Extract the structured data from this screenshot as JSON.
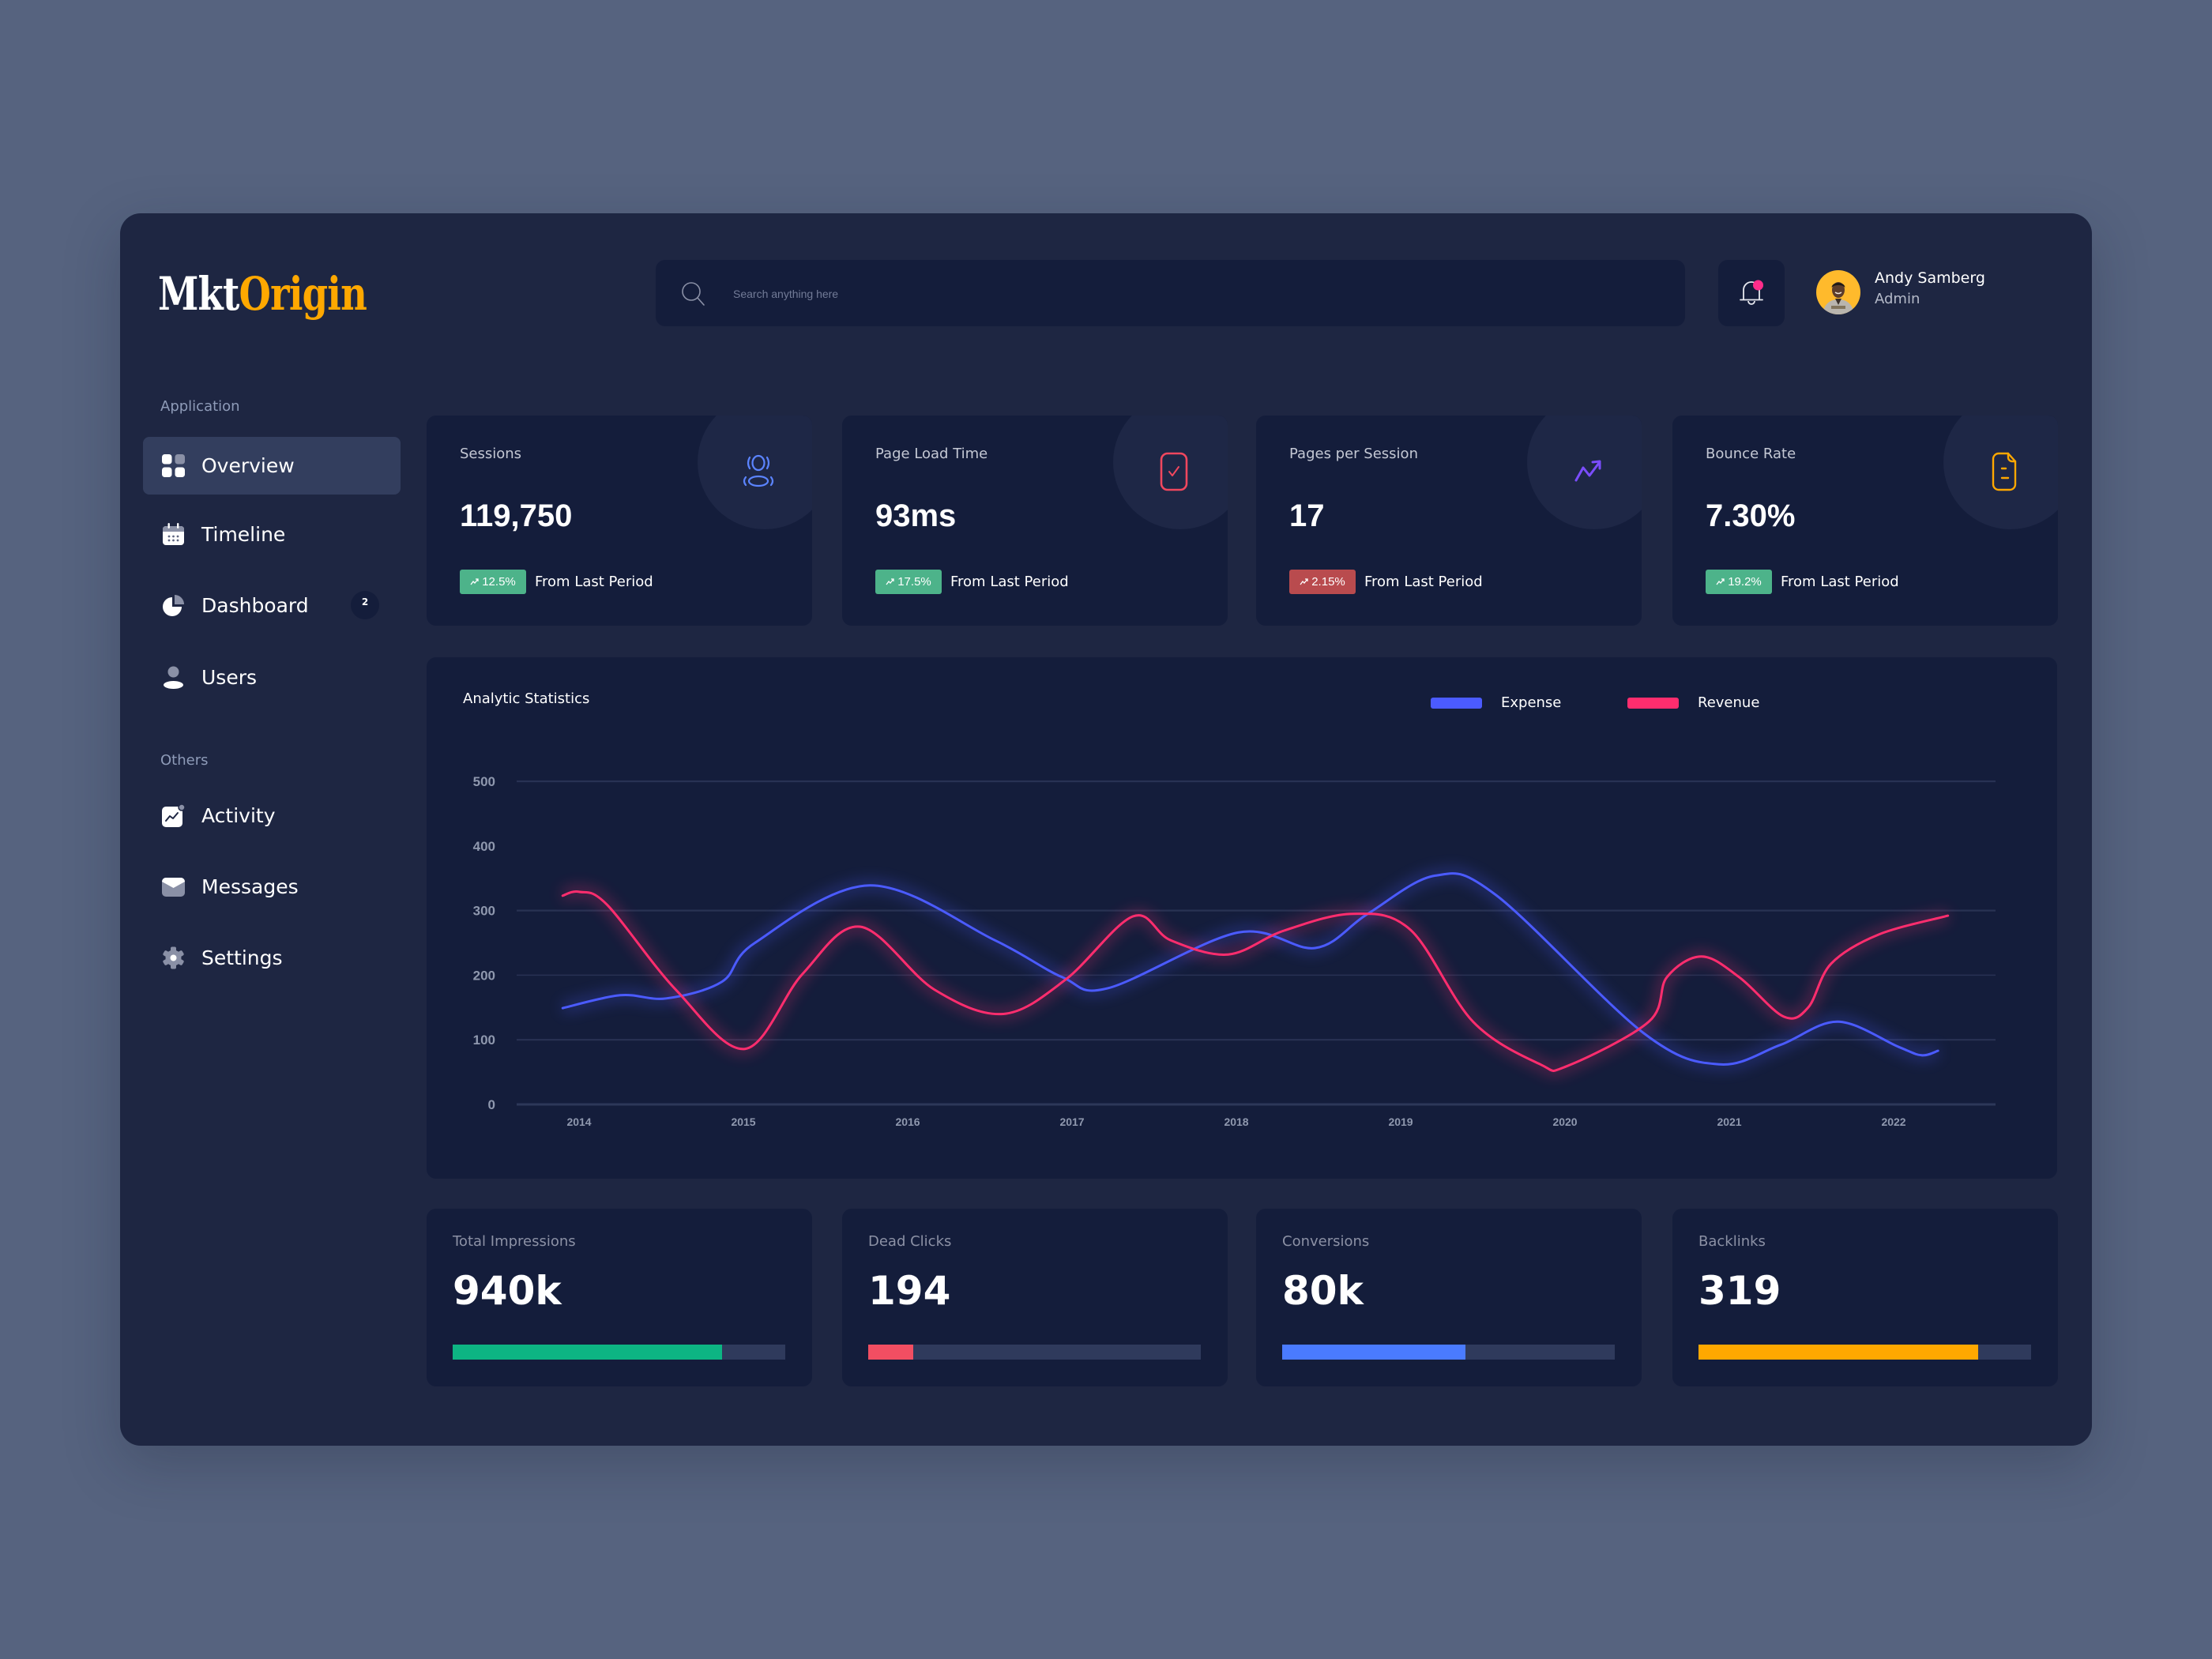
{
  "app": {
    "logo_part1": "Mkt",
    "logo_part2": "Origin"
  },
  "search": {
    "placeholder": "Search anything here",
    "icon": "search-icon"
  },
  "header": {
    "bell_icon": "bell-icon",
    "notification_dot_color": "#FF2D8A"
  },
  "user": {
    "name": "Andy Samberg",
    "role": "Admin"
  },
  "sidebar": {
    "sections": [
      {
        "title": "Application",
        "items": [
          {
            "label": "Overview",
            "icon": "grid-icon",
            "active": true
          },
          {
            "label": "Timeline",
            "icon": "calendar-icon"
          },
          {
            "label": "Dashboard",
            "icon": "pie-chart-icon",
            "badge": "2"
          },
          {
            "label": "Users",
            "icon": "user-icon"
          }
        ]
      },
      {
        "title": "Others",
        "items": [
          {
            "label": "Activity",
            "icon": "activity-icon"
          },
          {
            "label": "Messages",
            "icon": "mail-icon"
          },
          {
            "label": "Settings",
            "icon": "gear-icon"
          }
        ]
      }
    ]
  },
  "stats": [
    {
      "label": "Sessions",
      "value": "119,750",
      "change": "12.5%",
      "trend": "up",
      "change_color": "#4DB38A",
      "caption": "From Last Period",
      "icon": "users-icon",
      "icon_color": "#5B84FF"
    },
    {
      "label": "Page Load Time",
      "value": "93ms",
      "change": "17.5%",
      "trend": "up",
      "change_color": "#4DB38A",
      "caption": "From Last Period",
      "icon": "check-square-icon",
      "icon_color": "#F0475E"
    },
    {
      "label": "Pages per Session",
      "value": "17",
      "change": "2.15%",
      "trend": "down",
      "change_color": "#B94B4E",
      "caption": "From Last Period",
      "icon": "trending-up-icon",
      "icon_color": "#7B4DFF"
    },
    {
      "label": "Bounce Rate",
      "value": "7.30%",
      "change": "19.2%",
      "trend": "up",
      "change_color": "#4DB38A",
      "caption": "From Last Period",
      "icon": "document-icon",
      "icon_color": "#FFA800"
    }
  ],
  "chart_data": {
    "type": "line",
    "title": "Analytic Statistics",
    "xlabel": "",
    "ylabel": "",
    "x_tick_labels": [
      "2014",
      "2015",
      "2016",
      "2017",
      "2018",
      "2019",
      "2020",
      "2021",
      "2022"
    ],
    "y_ticks": [
      0,
      100,
      200,
      300,
      400,
      500
    ],
    "y_tick_labels": [
      "0",
      "100",
      "200",
      "300",
      "400",
      "500"
    ],
    "gridlines": [
      0,
      100,
      200,
      300,
      500
    ],
    "xlim": [
      2013.62,
      2022.62
    ],
    "ylim": [
      0,
      500
    ],
    "grid": true,
    "legend": "top-right",
    "series": [
      {
        "name": "Expense",
        "color": "#4B5BFF",
        "points": [
          [
            2013.9,
            149
          ],
          [
            2014.25,
            169
          ],
          [
            2014.53,
            164
          ],
          [
            2014.87,
            190
          ],
          [
            2015.07,
            250
          ],
          [
            2015.77,
            339
          ],
          [
            2016.53,
            254
          ],
          [
            2016.94,
            197
          ],
          [
            2017.22,
            180
          ],
          [
            2018.01,
            266
          ],
          [
            2018.48,
            242
          ],
          [
            2018.8,
            295
          ],
          [
            2019.21,
            354
          ],
          [
            2019.58,
            324
          ],
          [
            2020.48,
            110
          ],
          [
            2020.94,
            62
          ],
          [
            2021.31,
            92
          ],
          [
            2021.66,
            128
          ],
          [
            2022.03,
            89
          ],
          [
            2022.17,
            76
          ],
          [
            2022.27,
            83
          ]
        ]
      },
      {
        "name": "Revenue",
        "color": "#FF2D6E",
        "points": [
          [
            2013.9,
            323
          ],
          [
            2014.0,
            329
          ],
          [
            2014.17,
            309
          ],
          [
            2014.59,
            177
          ],
          [
            2015.01,
            86
          ],
          [
            2015.36,
            202
          ],
          [
            2015.71,
            275
          ],
          [
            2016.16,
            178
          ],
          [
            2016.58,
            140
          ],
          [
            2016.96,
            193
          ],
          [
            2017.37,
            291
          ],
          [
            2017.6,
            254
          ],
          [
            2017.95,
            232
          ],
          [
            2018.29,
            269
          ],
          [
            2018.71,
            295
          ],
          [
            2019.06,
            270
          ],
          [
            2019.44,
            128
          ],
          [
            2019.85,
            62
          ],
          [
            2020.01,
            59
          ],
          [
            2020.51,
            128
          ],
          [
            2020.62,
            197
          ],
          [
            2020.83,
            229
          ],
          [
            2021.06,
            197
          ],
          [
            2021.33,
            136
          ],
          [
            2021.48,
            150
          ],
          [
            2021.62,
            218
          ],
          [
            2021.91,
            263
          ],
          [
            2022.33,
            292
          ]
        ]
      }
    ]
  },
  "metrics": [
    {
      "label": "Total Impressions",
      "value": "940k",
      "progress": 0.81,
      "color": "#0DB583"
    },
    {
      "label": "Dead Clicks",
      "value": "194",
      "progress": 0.135,
      "color": "#F24E62"
    },
    {
      "label": "Conversions",
      "value": "80k",
      "progress": 0.55,
      "color": "#4A7BFF"
    },
    {
      "label": "Backlinks",
      "value": "319",
      "progress": 0.84,
      "color": "#FFA800"
    }
  ]
}
